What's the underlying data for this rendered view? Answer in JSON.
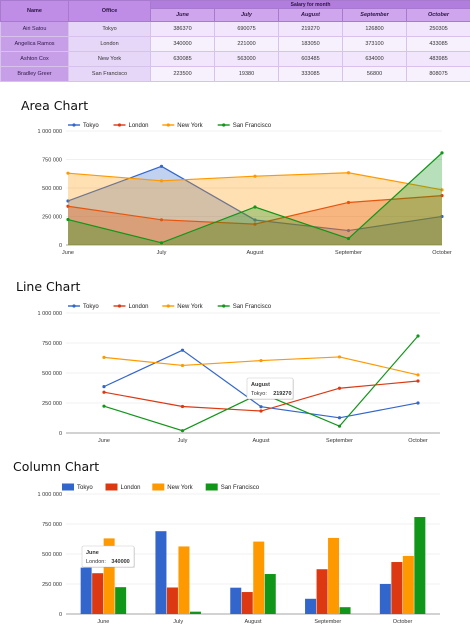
{
  "table": {
    "headers": {
      "name": "Name",
      "office": "Office",
      "group": "Salary for month"
    },
    "months": [
      "June",
      "July",
      "August",
      "September",
      "October"
    ],
    "rows": [
      {
        "name": "Airi Satou",
        "office": "Tokyo",
        "values": [
          "386370",
          "690075",
          "219270",
          "126800",
          "250305"
        ]
      },
      {
        "name": "Angelica Ramos",
        "office": "London",
        "values": [
          "340000",
          "221000",
          "183050",
          "373100",
          "433085"
        ]
      },
      {
        "name": "Ashton Cox",
        "office": "New York",
        "values": [
          "630085",
          "563000",
          "603485",
          "634000",
          "483985"
        ]
      },
      {
        "name": "Bradley Greer",
        "office": "San Francisco",
        "values": [
          "223500",
          "19380",
          "333085",
          "56800",
          "808075"
        ]
      }
    ]
  },
  "colors": {
    "tokyo": "#3366cc",
    "london": "#dc3912",
    "newyork": "#ff9900",
    "sanfrancisco": "#109618"
  },
  "chart_data": [
    {
      "type": "area",
      "title": "Area Chart",
      "categories": [
        "June",
        "July",
        "August",
        "September",
        "October"
      ],
      "series": [
        {
          "name": "Tokyo",
          "values": [
            386370,
            690075,
            219270,
            126800,
            250305
          ]
        },
        {
          "name": "London",
          "values": [
            340000,
            221000,
            183050,
            373100,
            433085
          ]
        },
        {
          "name": "New York",
          "values": [
            630085,
            563000,
            603485,
            634000,
            483985
          ]
        },
        {
          "name": "San Francisco",
          "values": [
            223500,
            19380,
            333085,
            56800,
            808075
          ]
        }
      ],
      "yticks": [
        "0",
        "250 000",
        "500 000",
        "750 000",
        "1 000 000"
      ],
      "ylim": [
        0,
        1000000
      ],
      "legend": "top-left",
      "grid": true
    },
    {
      "type": "line",
      "title": "Line Chart",
      "categories": [
        "June",
        "July",
        "August",
        "September",
        "October"
      ],
      "series": [
        {
          "name": "Tokyo",
          "values": [
            386370,
            690075,
            219270,
            126800,
            250305
          ]
        },
        {
          "name": "London",
          "values": [
            340000,
            221000,
            183050,
            373100,
            433085
          ]
        },
        {
          "name": "New York",
          "values": [
            630085,
            563000,
            603485,
            634000,
            483985
          ]
        },
        {
          "name": "San Francisco",
          "values": [
            223500,
            19380,
            333085,
            56800,
            808075
          ]
        }
      ],
      "yticks": [
        "0",
        "250 000",
        "500 000",
        "750 000",
        "1 000 000"
      ],
      "ylim": [
        0,
        1000000
      ],
      "legend": "top-left",
      "grid": true,
      "tooltip": {
        "title": "August",
        "label": "Tokyo:",
        "value": "219270"
      }
    },
    {
      "type": "bar",
      "title": "Column Chart",
      "categories": [
        "June",
        "July",
        "August",
        "September",
        "October"
      ],
      "series": [
        {
          "name": "Tokyo",
          "values": [
            386370,
            690075,
            219270,
            126800,
            250305
          ]
        },
        {
          "name": "London",
          "values": [
            340000,
            221000,
            183050,
            373100,
            433085
          ]
        },
        {
          "name": "New York",
          "values": [
            630085,
            563000,
            603485,
            634000,
            483985
          ]
        },
        {
          "name": "San Francisco",
          "values": [
            223500,
            19380,
            333085,
            56800,
            808075
          ]
        }
      ],
      "yticks": [
        "0",
        "250 000",
        "500 000",
        "750 000",
        "1 000 000"
      ],
      "ylim": [
        0,
        1000000
      ],
      "legend": "top-left",
      "grid": true,
      "tooltip": {
        "title": "June",
        "label": "London:",
        "value": "340000"
      }
    }
  ]
}
